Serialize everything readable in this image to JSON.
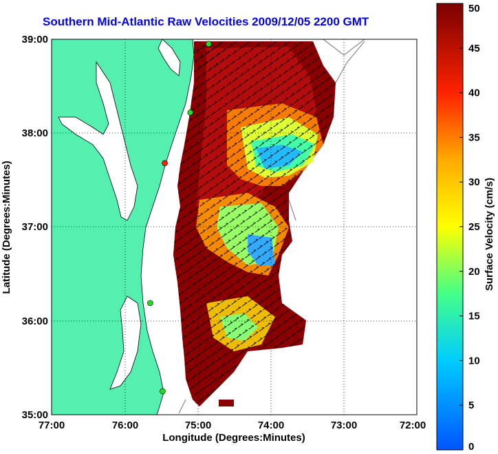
{
  "title": "Southern Mid-Atlantic Raw Velocities 2009/12/05 2200 GMT",
  "xlabel": "Longitude (Degrees:Minutes)",
  "ylabel": "Latitude (Degrees:Minutes)",
  "xticks": [
    "77:00",
    "76:00",
    "75:00",
    "74:00",
    "73:00",
    "72:00"
  ],
  "yticks": [
    "39:00",
    "38:00",
    "37:00",
    "36:00",
    "35:00"
  ],
  "xlim": [
    -77,
    -72
  ],
  "ylim": [
    35,
    39
  ],
  "colorbar": {
    "label": "Surface Velocity (cm/s)",
    "ticks": [
      "0",
      "5",
      "10",
      "15",
      "20",
      "25",
      "30",
      "35",
      "40",
      "45",
      "50"
    ],
    "range": [
      0,
      50
    ]
  },
  "colors": {
    "land": "#55efb0",
    "title": "#0000ee"
  },
  "stations": [
    {
      "lon": -74.85,
      "lat": 38.95,
      "color": "green"
    },
    {
      "lon": -75.1,
      "lat": 38.22,
      "color": "green"
    },
    {
      "lon": -75.45,
      "lat": 37.68,
      "color": "red"
    },
    {
      "lon": -75.65,
      "lat": 36.19,
      "color": "green"
    },
    {
      "lon": -75.48,
      "lat": 35.25,
      "color": "green"
    }
  ]
}
